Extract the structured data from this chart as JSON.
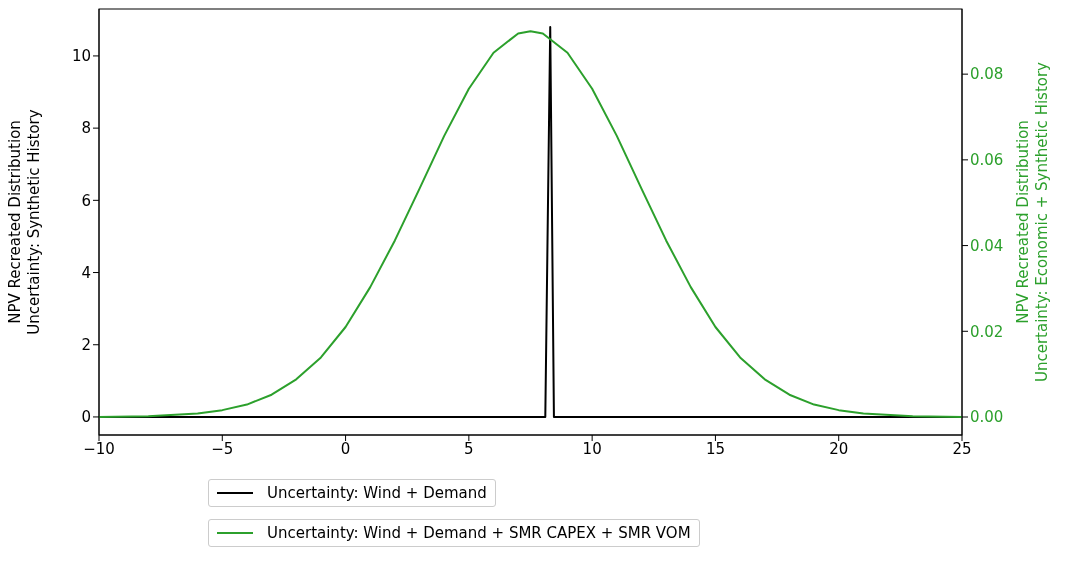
{
  "chart_data": {
    "type": "line",
    "xlim": [
      -10,
      25
    ],
    "xticks": [
      {
        "value": -10,
        "label": "−10"
      },
      {
        "value": -5,
        "label": "−5"
      },
      0,
      5,
      10,
      15,
      20,
      25
    ],
    "ylim": [
      -0.5,
      11.3
    ],
    "yticks": [
      0,
      2,
      4,
      6,
      8,
      10
    ],
    "y2lim": [
      -0.0042,
      0.0952
    ],
    "y2ticks": [
      {
        "value": 0,
        "label": "0.00"
      },
      {
        "value": 0.02,
        "label": "0.02"
      },
      {
        "value": 0.04,
        "label": "0.04"
      },
      {
        "value": 0.06,
        "label": "0.06"
      },
      {
        "value": 0.08,
        "label": "0.08"
      }
    ],
    "ylabel": "NPV Recreated Distribution\nUncertainty: Synthetic History",
    "y2label": "NPV Recreated Distribution\nUncertainty: Economic + Synthetic History",
    "legend": "bottom",
    "grid": false,
    "series": [
      {
        "name": "Uncertainty: Wind + Demand",
        "color": "#000000",
        "x": [
          -10,
          8.1,
          8.3,
          8.45,
          25
        ],
        "values": [
          0,
          0,
          10.8,
          0,
          0
        ]
      },
      {
        "name": "Uncertainty: Wind + Demand + SMR CAPEX + SMR VOM",
        "color": "#2ca02c",
        "axis": "y2",
        "x": [
          -10,
          -8,
          -6,
          -5,
          -4,
          -3,
          -2,
          -1,
          0,
          1,
          2,
          3,
          4,
          5,
          6,
          7,
          7.5,
          8,
          9,
          10,
          11,
          12,
          13,
          14,
          15,
          16,
          17,
          18,
          19,
          20,
          21,
          23,
          25
        ],
        "values": [
          0,
          0.0002,
          0.0008,
          0.0016,
          0.0029,
          0.0052,
          0.0088,
          0.0139,
          0.021,
          0.0303,
          0.0412,
          0.0533,
          0.0656,
          0.0766,
          0.085,
          0.0895,
          0.09,
          0.0895,
          0.085,
          0.0766,
          0.0656,
          0.0533,
          0.0412,
          0.0303,
          0.021,
          0.0139,
          0.0088,
          0.0052,
          0.0029,
          0.0016,
          0.0008,
          0.0002,
          0
        ]
      }
    ]
  }
}
